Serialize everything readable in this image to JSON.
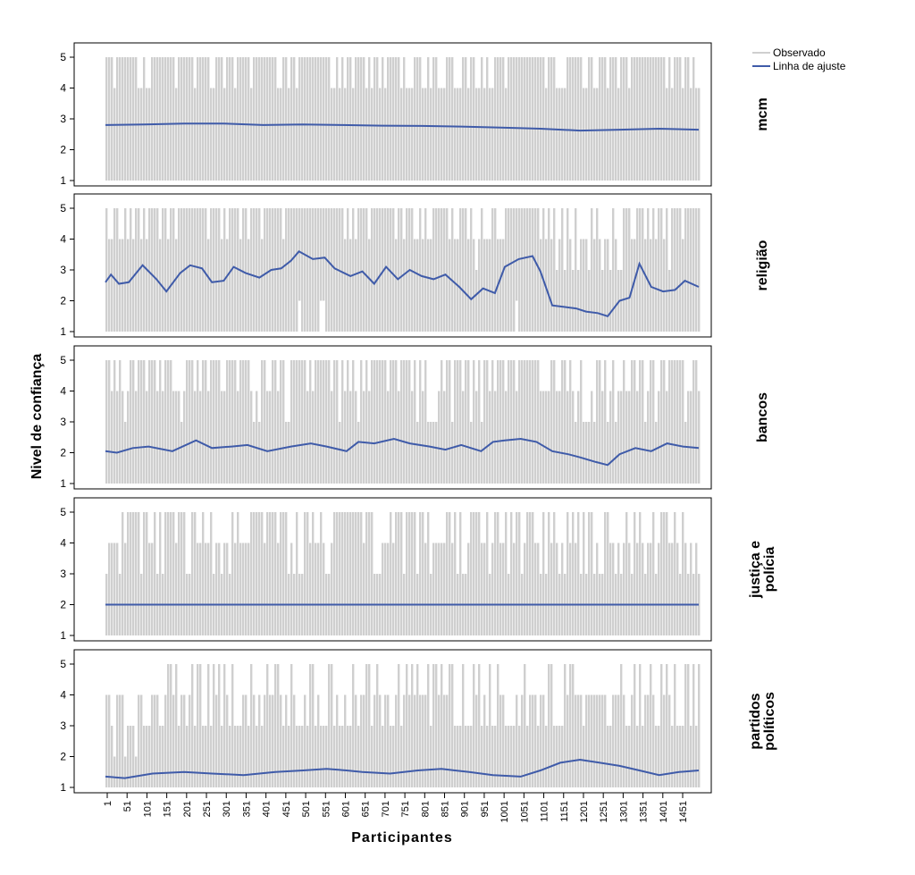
{
  "chart_data": {
    "type": "line",
    "title": "",
    "xlabel": "Participantes",
    "ylabel": "Nivel de confiança",
    "ylim": [
      1,
      5
    ],
    "yticks": [
      1,
      2,
      3,
      4,
      5
    ],
    "xlim": [
      1,
      1500
    ],
    "xticks": [
      "1",
      "51",
      "101",
      "151",
      "201",
      "251",
      "301",
      "351",
      "401",
      "451",
      "501",
      "551",
      "601",
      "651",
      "701",
      "751",
      "801",
      "851",
      "901",
      "951",
      "1001",
      "1051",
      "1101",
      "1151",
      "1201",
      "1251",
      "1301",
      "1351",
      "1401",
      "1451"
    ],
    "legend": {
      "position": "top-right",
      "entries": [
        {
          "label": "Observado",
          "color": "#cfcfcf"
        },
        {
          "label": "Linha de ajuste",
          "color": "#3f5ba9"
        }
      ]
    },
    "grid": false,
    "panels": [
      {
        "label_lines": [
          "mcm"
        ],
        "observed_range": [
          1,
          5
        ],
        "fit": {
          "x": [
            1,
            100,
            200,
            300,
            400,
            500,
            600,
            700,
            800,
            900,
            1000,
            1100,
            1200,
            1300,
            1400,
            1500
          ],
          "y": [
            2.8,
            2.82,
            2.85,
            2.85,
            2.8,
            2.82,
            2.8,
            2.78,
            2.77,
            2.75,
            2.72,
            2.68,
            2.62,
            2.65,
            2.68,
            2.65
          ]
        }
      },
      {
        "label_lines": [
          "religião"
        ],
        "observed_range": [
          1,
          5
        ],
        "fit": {
          "x": [
            1,
            15,
            35,
            60,
            95,
            130,
            155,
            190,
            215,
            245,
            270,
            300,
            325,
            355,
            390,
            420,
            445,
            470,
            490,
            525,
            555,
            580,
            620,
            650,
            680,
            710,
            740,
            770,
            800,
            830,
            860,
            895,
            925,
            955,
            985,
            1010,
            1045,
            1080,
            1100,
            1130,
            1160,
            1190,
            1215,
            1245,
            1270,
            1300,
            1325,
            1350,
            1380,
            1410,
            1440,
            1465,
            1500
          ],
          "y": [
            2.6,
            2.85,
            2.55,
            2.6,
            3.15,
            2.7,
            2.3,
            2.9,
            3.15,
            3.05,
            2.6,
            2.65,
            3.1,
            2.9,
            2.75,
            3.0,
            3.05,
            3.3,
            3.6,
            3.35,
            3.4,
            3.05,
            2.8,
            2.95,
            2.55,
            3.1,
            2.7,
            3.0,
            2.8,
            2.7,
            2.85,
            2.45,
            2.05,
            2.4,
            2.25,
            3.1,
            3.35,
            3.45,
            2.95,
            1.85,
            1.8,
            1.75,
            1.65,
            1.6,
            1.5,
            2.0,
            2.1,
            3.2,
            2.45,
            2.3,
            2.35,
            2.65,
            2.45
          ]
        }
      },
      {
        "label_lines": [
          "bancos"
        ],
        "observed_range": [
          1,
          5
        ],
        "fit": {
          "x": [
            1,
            30,
            70,
            110,
            170,
            230,
            270,
            320,
            360,
            410,
            470,
            520,
            560,
            610,
            640,
            680,
            730,
            770,
            820,
            860,
            900,
            950,
            980,
            1010,
            1050,
            1090,
            1130,
            1170,
            1200,
            1240,
            1270,
            1300,
            1340,
            1380,
            1420,
            1460,
            1500
          ],
          "y": [
            2.05,
            2.0,
            2.15,
            2.2,
            2.05,
            2.4,
            2.15,
            2.2,
            2.25,
            2.05,
            2.2,
            2.3,
            2.2,
            2.05,
            2.35,
            2.3,
            2.45,
            2.3,
            2.2,
            2.1,
            2.25,
            2.05,
            2.35,
            2.4,
            2.45,
            2.35,
            2.05,
            1.95,
            1.85,
            1.7,
            1.6,
            1.95,
            2.15,
            2.05,
            2.3,
            2.2,
            2.15
          ]
        }
      },
      {
        "label_lines": [
          "justiça e",
          "polícia"
        ],
        "observed_range": [
          1,
          5
        ],
        "fit": {
          "x": [
            1,
            1500
          ],
          "y": [
            2.0,
            2.0
          ]
        }
      },
      {
        "label_lines": [
          "partidos",
          "políticos"
        ],
        "observed_range": [
          1,
          5
        ],
        "fit": {
          "x": [
            1,
            50,
            120,
            200,
            270,
            350,
            430,
            500,
            560,
            610,
            650,
            720,
            790,
            850,
            920,
            980,
            1050,
            1100,
            1150,
            1200,
            1250,
            1300,
            1350,
            1400,
            1450,
            1500
          ],
          "y": [
            1.35,
            1.3,
            1.45,
            1.5,
            1.45,
            1.4,
            1.5,
            1.55,
            1.6,
            1.55,
            1.5,
            1.45,
            1.55,
            1.6,
            1.5,
            1.4,
            1.35,
            1.55,
            1.8,
            1.9,
            1.8,
            1.7,
            1.55,
            1.4,
            1.5,
            1.55
          ]
        }
      }
    ]
  }
}
